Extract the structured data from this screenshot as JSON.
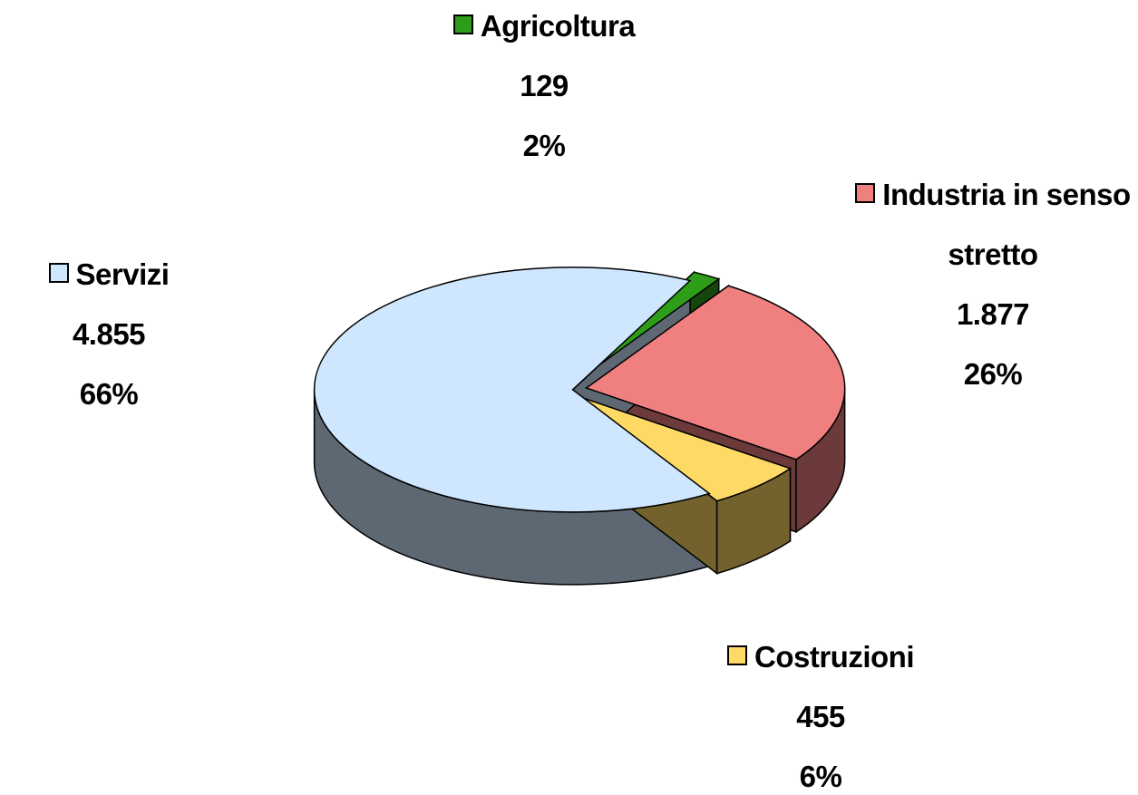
{
  "chart_data": {
    "type": "pie3d",
    "categories": [
      "Agricoltura",
      "Industria in senso stretto",
      "Costruzioni",
      "Servizi"
    ],
    "values": [
      129,
      1877,
      455,
      4855
    ],
    "value_labels": [
      "129",
      "1.877",
      "455",
      "4.855"
    ],
    "percents": [
      2,
      26,
      6,
      66
    ],
    "percent_labels": [
      "2%",
      "26%",
      "6%",
      "66%"
    ],
    "colors": [
      "#2e9e1a",
      "#f08080",
      "#ffd966",
      "#cfe6ff"
    ]
  }
}
